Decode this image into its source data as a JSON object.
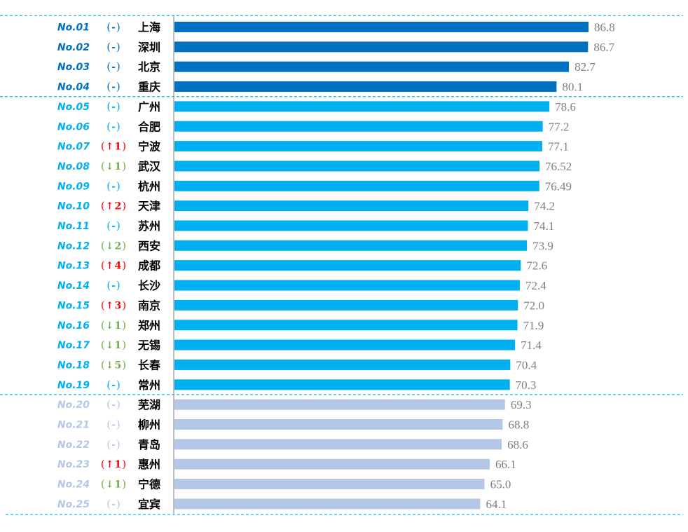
{
  "colors": {
    "tier1": "#0070c0",
    "tier2": "#00b0f0",
    "tier3": "#b4c7e7",
    "rank_tier1": "#0070c0",
    "rank_tier2": "#00b0f0",
    "rank_tier3": "#b4c7e7",
    "up": "#ff0000",
    "down": "#70ad47",
    "neutral_tier1": "#0070c0",
    "neutral_tier2": "#00b0f0",
    "neutral_tier3": "#b4c7e7",
    "value_label": "#7f7f7f",
    "separator": "#00b0f0"
  },
  "chart_data": {
    "type": "bar",
    "orientation": "horizontal",
    "title": "",
    "xlabel": "",
    "ylabel": "",
    "xlim": [
      0,
      86.8
    ],
    "grid": false,
    "legend": "none",
    "rows": [
      {
        "rank": "No.01",
        "change": "-",
        "dir": "none",
        "city": "上海",
        "value": 86.8,
        "value_label": "86.8",
        "tier": 1
      },
      {
        "rank": "No.02",
        "change": "-",
        "dir": "none",
        "city": "深圳",
        "value": 86.7,
        "value_label": "86.7",
        "tier": 1
      },
      {
        "rank": "No.03",
        "change": "-",
        "dir": "none",
        "city": "北京",
        "value": 82.7,
        "value_label": "82.7",
        "tier": 1
      },
      {
        "rank": "No.04",
        "change": "-",
        "dir": "none",
        "city": "重庆",
        "value": 80.1,
        "value_label": "80.1",
        "tier": 1
      },
      {
        "rank": "No.05",
        "change": "-",
        "dir": "none",
        "city": "广州",
        "value": 78.6,
        "value_label": "78.6",
        "tier": 2
      },
      {
        "rank": "No.06",
        "change": "-",
        "dir": "none",
        "city": "合肥",
        "value": 77.2,
        "value_label": "77.2",
        "tier": 2
      },
      {
        "rank": "No.07",
        "change": "1",
        "dir": "up",
        "city": "宁波",
        "value": 77.1,
        "value_label": "77.1",
        "tier": 2
      },
      {
        "rank": "No.08",
        "change": "1",
        "dir": "down",
        "city": "武汉",
        "value": 76.52,
        "value_label": "76.52",
        "tier": 2
      },
      {
        "rank": "No.09",
        "change": "-",
        "dir": "none",
        "city": "杭州",
        "value": 76.49,
        "value_label": "76.49",
        "tier": 2
      },
      {
        "rank": "No.10",
        "change": "2",
        "dir": "up",
        "city": "天津",
        "value": 74.2,
        "value_label": "74.2",
        "tier": 2
      },
      {
        "rank": "No.11",
        "change": "-",
        "dir": "none",
        "city": "苏州",
        "value": 74.1,
        "value_label": "74.1",
        "tier": 2
      },
      {
        "rank": "No.12",
        "change": "2",
        "dir": "down",
        "city": "西安",
        "value": 73.9,
        "value_label": "73.9",
        "tier": 2
      },
      {
        "rank": "No.13",
        "change": "4",
        "dir": "up",
        "city": "成都",
        "value": 72.6,
        "value_label": "72.6",
        "tier": 2
      },
      {
        "rank": "No.14",
        "change": "-",
        "dir": "none",
        "city": "长沙",
        "value": 72.4,
        "value_label": "72.4",
        "tier": 2
      },
      {
        "rank": "No.15",
        "change": "3",
        "dir": "up",
        "city": "南京",
        "value": 72.0,
        "value_label": "72.0",
        "tier": 2
      },
      {
        "rank": "No.16",
        "change": "1",
        "dir": "down",
        "city": "郑州",
        "value": 71.9,
        "value_label": "71.9",
        "tier": 2
      },
      {
        "rank": "No.17",
        "change": "1",
        "dir": "down",
        "city": "无锡",
        "value": 71.4,
        "value_label": "71.4",
        "tier": 2
      },
      {
        "rank": "No.18",
        "change": "5",
        "dir": "down",
        "city": "长春",
        "value": 70.4,
        "value_label": "70.4",
        "tier": 2
      },
      {
        "rank": "No.19",
        "change": "-",
        "dir": "none",
        "city": "常州",
        "value": 70.3,
        "value_label": "70.3",
        "tier": 2
      },
      {
        "rank": "No.20",
        "change": "-",
        "dir": "none",
        "city": "芜湖",
        "value": 69.3,
        "value_label": "69.3",
        "tier": 3
      },
      {
        "rank": "No.21",
        "change": "-",
        "dir": "none",
        "city": "柳州",
        "value": 68.8,
        "value_label": "68.8",
        "tier": 3
      },
      {
        "rank": "No.22",
        "change": "-",
        "dir": "none",
        "city": "青岛",
        "value": 68.6,
        "value_label": "68.6",
        "tier": 3
      },
      {
        "rank": "No.23",
        "change": "1",
        "dir": "up",
        "city": "惠州",
        "value": 66.1,
        "value_label": "66.1",
        "tier": 3
      },
      {
        "rank": "No.24",
        "change": "1",
        "dir": "down",
        "city": "宁德",
        "value": 65.0,
        "value_label": "65.0",
        "tier": 3
      },
      {
        "rank": "No.25",
        "change": "-",
        "dir": "none",
        "city": "宜宾",
        "value": 64.1,
        "value_label": "64.1",
        "tier": 3
      }
    ]
  }
}
